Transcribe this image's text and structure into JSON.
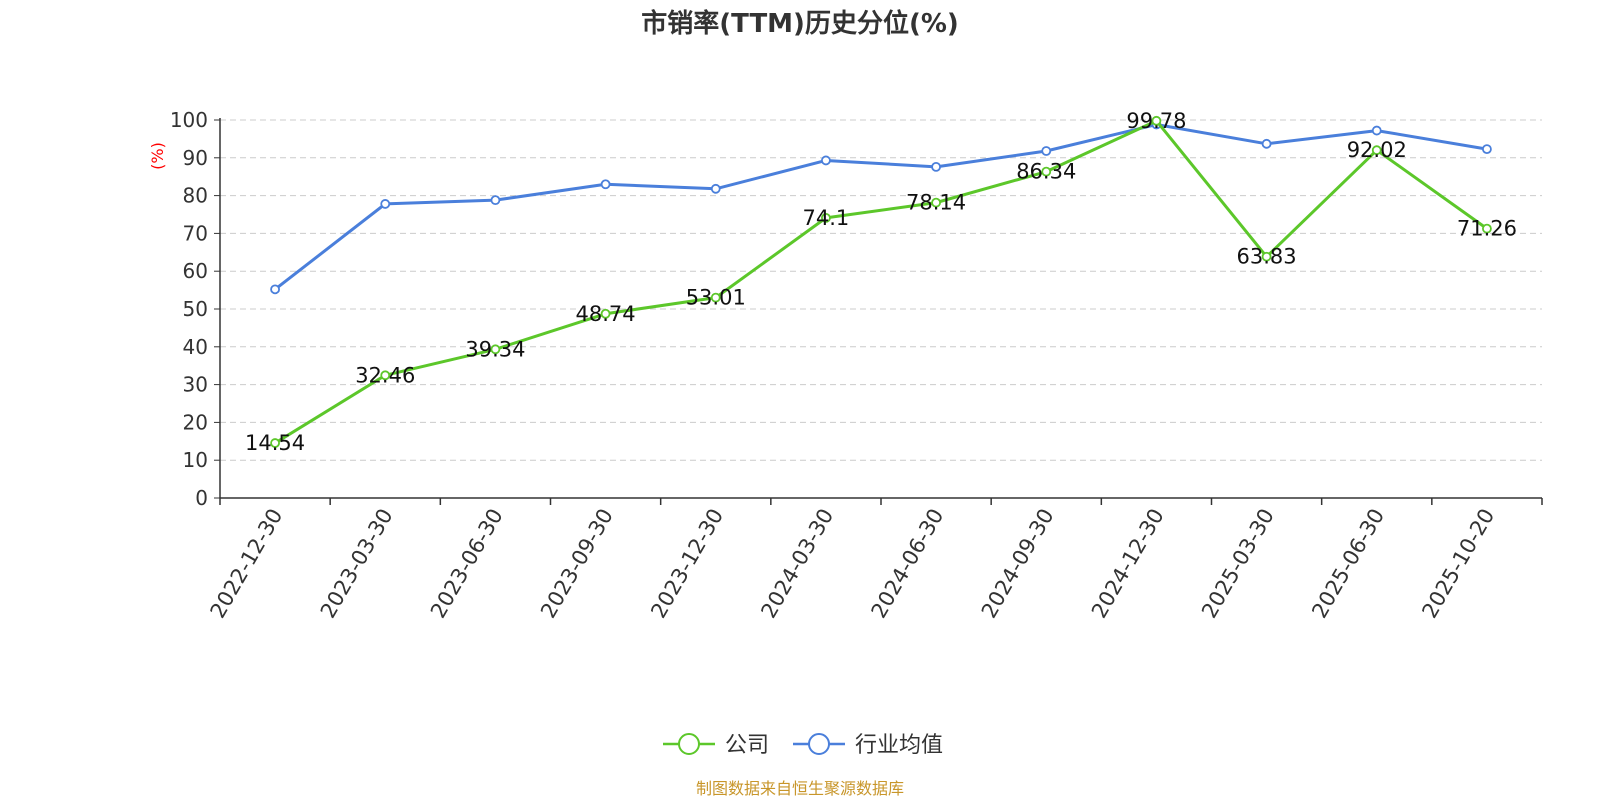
{
  "chart_data": {
    "type": "line",
    "title": "市销率(TTM)历史分位(%)",
    "ylabel": "(%)",
    "xlabel": "",
    "ylim": [
      0,
      100
    ],
    "yticks": [
      0,
      10,
      20,
      30,
      40,
      50,
      60,
      70,
      80,
      90,
      100
    ],
    "categories": [
      "2022-12-30",
      "2023-03-30",
      "2023-06-30",
      "2023-09-30",
      "2023-12-30",
      "2024-03-30",
      "2024-06-30",
      "2024-09-30",
      "2024-12-30",
      "2025-03-30",
      "2025-06-30",
      "2025-10-20"
    ],
    "series": [
      {
        "name": "公司",
        "color": "#5cc72a",
        "values": [
          14.54,
          32.46,
          39.34,
          48.74,
          53.01,
          74.1,
          78.14,
          86.34,
          99.78,
          63.83,
          92.02,
          71.26
        ],
        "labels": [
          "14.54",
          "32.46",
          "39.34",
          "48.74",
          "53.01",
          "74.1",
          "78.14",
          "86.34",
          "99.78",
          "63.83",
          "92.02",
          "71.26"
        ]
      },
      {
        "name": "行业均值",
        "color": "#4a7fdb",
        "values": [
          55.2,
          77.8,
          78.8,
          83.0,
          81.8,
          89.3,
          87.6,
          91.8,
          98.8,
          93.7,
          97.2,
          92.3
        ]
      }
    ],
    "grid": true,
    "legend_position": "bottom-center"
  },
  "source_text": "制图数据来自恒生聚源数据库",
  "colors": {
    "axis": "#333333",
    "grid": "#cccccc",
    "unit_label": "#ff0000",
    "source": "#c8962a"
  }
}
